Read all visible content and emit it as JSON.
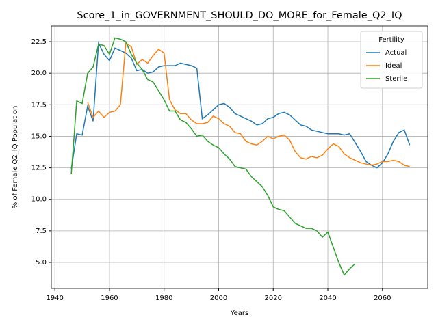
{
  "chart_data": {
    "type": "line",
    "title": "Score_1_in_GOVERNMENT_SHOULD_DO_MORE_for_Female_Q2_IQ",
    "xlabel": "Years",
    "ylabel": "% of Female Q2_IQ Population",
    "legend_title": "Fertility",
    "legend": "upper right",
    "grid": true,
    "x": [
      1946,
      1948,
      1950,
      1952,
      1954,
      1956,
      1958,
      1960,
      1962,
      1964,
      1966,
      1968,
      1970,
      1972,
      1974,
      1976,
      1978,
      1980,
      1982,
      1984,
      1986,
      1988,
      1990,
      1992,
      1994,
      1996,
      1998,
      2000,
      2002,
      2004,
      2006,
      2008,
      2010,
      2012,
      2014,
      2016,
      2018,
      2020,
      2022,
      2024,
      2026,
      2028,
      2030,
      2032,
      2034,
      2036,
      2038,
      2040,
      2042,
      2044,
      2046,
      2048,
      2050,
      2052,
      2054,
      2056,
      2058,
      2060,
      2062,
      2064,
      2066,
      2068,
      2070
    ],
    "series": [
      {
        "name": "Actual",
        "color": "#1f77b4",
        "values": [
          12.4,
          15.2,
          15.1,
          17.4,
          16.2,
          22.4,
          21.5,
          21.0,
          22.0,
          21.8,
          21.6,
          21.2,
          20.2,
          20.3,
          20.0,
          20.1,
          20.5,
          20.6,
          20.6,
          20.6,
          20.8,
          20.7,
          20.6,
          20.4,
          16.4,
          16.7,
          17.1,
          17.5,
          17.6,
          17.3,
          16.8,
          16.6,
          16.4,
          16.2,
          15.9,
          16.0,
          16.4,
          16.5,
          16.8,
          16.9,
          16.7,
          16.3,
          15.9,
          15.8,
          15.5,
          15.4,
          15.3,
          15.2,
          15.2,
          15.2,
          15.1,
          15.2,
          14.5,
          13.8,
          13.0,
          12.7,
          12.5,
          12.9,
          13.6,
          14.6,
          15.3,
          15.5,
          14.3
        ]
      },
      {
        "name": "Ideal",
        "color": "#ff7f0e",
        "values": [
          null,
          null,
          null,
          17.7,
          16.5,
          17.0,
          16.5,
          16.9,
          17.0,
          17.5,
          22.4,
          22.1,
          20.7,
          21.1,
          20.8,
          21.4,
          21.9,
          21.6,
          17.9,
          17.1,
          16.8,
          16.8,
          16.3,
          16.0,
          16.0,
          16.1,
          16.6,
          16.4,
          16.0,
          15.8,
          15.3,
          15.2,
          14.6,
          14.4,
          14.3,
          14.6,
          15.0,
          14.8,
          15.0,
          15.1,
          14.7,
          13.8,
          13.3,
          13.2,
          13.4,
          13.3,
          13.5,
          14.0,
          14.4,
          14.2,
          13.6,
          13.3,
          13.1,
          12.9,
          12.8,
          12.7,
          12.8,
          13.0,
          13.0,
          13.1,
          13.0,
          12.7,
          12.6
        ]
      },
      {
        "name": "Sterile",
        "color": "#2ca02c",
        "values": [
          12.0,
          17.8,
          17.6,
          20.0,
          20.5,
          22.3,
          22.2,
          21.5,
          22.8,
          22.7,
          22.5,
          21.5,
          20.8,
          20.3,
          19.5,
          19.3,
          18.6,
          17.9,
          17.0,
          17.0,
          16.3,
          16.1,
          15.6,
          15.0,
          15.1,
          14.6,
          14.3,
          14.1,
          13.6,
          13.2,
          12.6,
          12.5,
          12.4,
          11.8,
          11.4,
          11.0,
          10.3,
          9.4,
          9.2,
          9.1,
          8.6,
          8.1,
          7.9,
          7.7,
          7.7,
          7.5,
          7.0,
          7.4,
          6.2,
          5.0,
          4.0,
          4.5,
          4.9,
          null,
          null,
          null,
          null,
          null,
          null,
          null,
          null,
          null,
          null
        ]
      }
    ],
    "xlim": [
      1938.7,
      2076.6
    ],
    "xticks": [
      1940,
      1960,
      1980,
      2000,
      2020,
      2040,
      2060
    ],
    "ylim": [
      2.94,
      23.75
    ],
    "yticks": [
      {
        "value": 5,
        "label": "5.0"
      },
      7.5,
      {
        "value": 10,
        "label": "10.0"
      },
      12.5,
      {
        "value": 15,
        "label": "15.0"
      },
      17.5,
      {
        "value": 20,
        "label": "20.0"
      },
      22.5
    ]
  }
}
